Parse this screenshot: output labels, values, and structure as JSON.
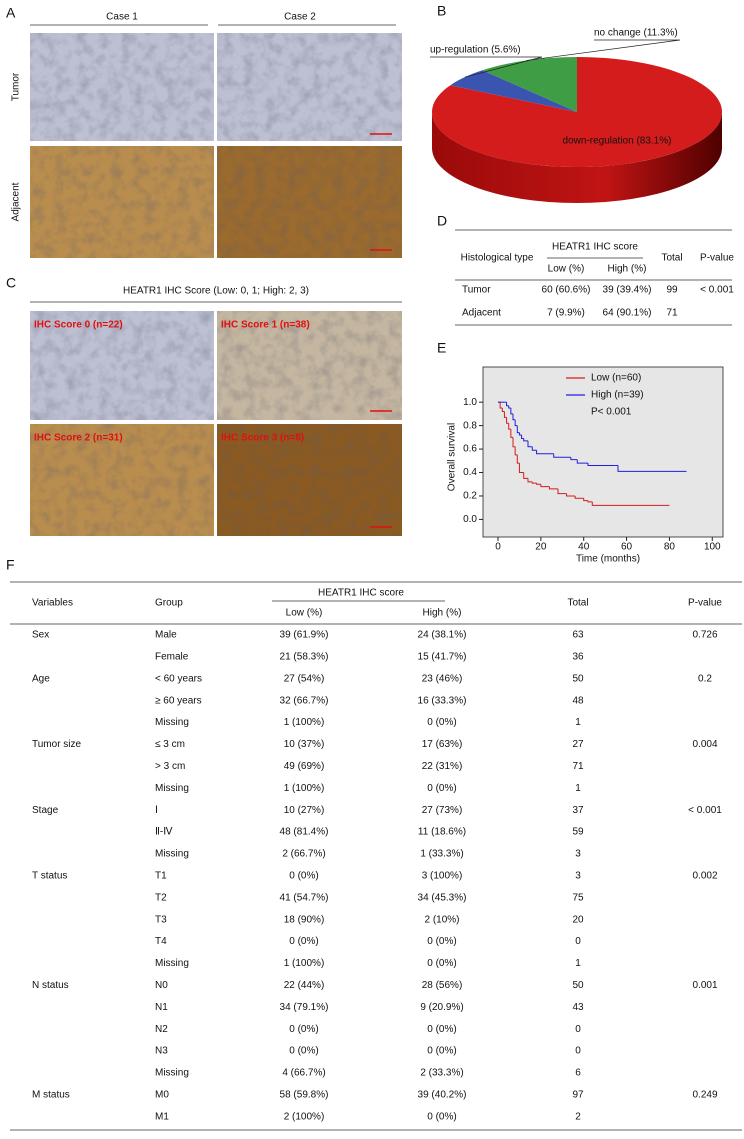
{
  "panel_labels": [
    "A",
    "B",
    "C",
    "D",
    "E",
    "F"
  ],
  "panel_a": {
    "columns": [
      "Case 1",
      "Case 2"
    ],
    "rows": [
      "Tumor",
      "Adjacent"
    ]
  },
  "panel_c": {
    "title": "HEATR1 IHC Score (Low: 0, 1; High: 2, 3)",
    "images": [
      "IHC Score 0 (n=22)",
      "IHC Score 1 (n=38)",
      "IHC Score 2 (n=31)",
      "IHC Score 3 (n=8)"
    ]
  },
  "chart_data": [
    {
      "type": "pie",
      "labels": [
        "down-regulation (83.1%)",
        "up-regulation (5.6%)",
        "no change (11.3%)"
      ],
      "values": [
        83.1,
        5.6,
        11.3
      ],
      "colors": [
        "#d41c1c",
        "#3a55b0",
        "#3f9d45"
      ]
    },
    {
      "type": "step",
      "xlabel": "Time (months)",
      "ylabel": "Overall survival",
      "xlim": [
        -7,
        105
      ],
      "ylim": [
        -0.15,
        1.3
      ],
      "xticks": [
        0,
        20,
        40,
        60,
        80,
        100
      ],
      "yticks": [
        {
          "value": 0,
          "label": "0.0"
        },
        {
          "value": 0.2,
          "label": "0.2"
        },
        {
          "value": 0.4,
          "label": "0.4"
        },
        {
          "value": 0.6,
          "label": "0.6"
        },
        {
          "value": 0.8,
          "label": "0.8"
        },
        {
          "value": 1,
          "label": "1.0"
        }
      ],
      "series": [
        {
          "name": "Low (n=60)",
          "color": "#d41c1c",
          "x": [
            0,
            1,
            2,
            3,
            4,
            5,
            6,
            7,
            8,
            9,
            10,
            12,
            14,
            16,
            18,
            20,
            24,
            28,
            32,
            36,
            40,
            42,
            44,
            80
          ],
          "values": [
            1.0,
            0.95,
            0.92,
            0.87,
            0.82,
            0.77,
            0.7,
            0.62,
            0.55,
            0.48,
            0.4,
            0.35,
            0.32,
            0.31,
            0.3,
            0.28,
            0.26,
            0.22,
            0.2,
            0.18,
            0.16,
            0.15,
            0.12,
            0.12
          ]
        },
        {
          "name": "High (n=39)",
          "color": "#1f1fe0",
          "x": [
            0,
            3,
            4,
            5,
            6,
            7,
            8,
            9,
            10,
            11,
            12,
            14,
            16,
            18,
            22,
            26,
            30,
            34,
            37,
            42,
            55,
            56,
            88
          ],
          "values": [
            1.0,
            1.0,
            0.97,
            0.95,
            0.9,
            0.85,
            0.8,
            0.74,
            0.72,
            0.69,
            0.67,
            0.62,
            0.59,
            0.56,
            0.56,
            0.53,
            0.53,
            0.51,
            0.48,
            0.46,
            0.46,
            0.41,
            0.41
          ]
        }
      ],
      "annotation": "P< 0.001"
    }
  ],
  "table_d": {
    "header": {
      "first": "Histological type",
      "group": "HEATR1 IHC score",
      "sub": [
        "Low (%)",
        "High (%)"
      ],
      "total": "Total",
      "p": "P-value"
    },
    "rows": [
      [
        "Tumor",
        "60 (60.6%)",
        "39 (39.4%)",
        99,
        "< 0.001"
      ],
      [
        "Adjacent",
        "7 (9.9%)",
        "64 (90.1%)",
        71,
        null
      ]
    ]
  },
  "table_f": {
    "header": {
      "first": "Variables",
      "second": "Group",
      "group": "HEATR1 IHC score",
      "sub": [
        "Low (%)",
        "High (%)"
      ],
      "total": "Total",
      "p": "P-value"
    },
    "groups": [
      {
        "variable": "Sex",
        "p_value": 0.726,
        "rows": [
          [
            "Male",
            "39 (61.9%)",
            "24 (38.1%)",
            63
          ],
          [
            "Female",
            "21 (58.3%)",
            "15 (41.7%)",
            36
          ]
        ]
      },
      {
        "variable": "Age",
        "p_value": 0.2,
        "rows": [
          [
            "< 60 years",
            "27 (54%)",
            "23 (46%)",
            50
          ],
          [
            "≥ 60 years",
            "32 (66.7%)",
            "16 (33.3%)",
            48
          ],
          [
            "Missing",
            "1 (100%)",
            "0 (0%)",
            1
          ]
        ]
      },
      {
        "variable": "Tumor size",
        "p_value": 0.004,
        "rows": [
          [
            "≤ 3 cm",
            "10 (37%)",
            "17 (63%)",
            27
          ],
          [
            "> 3 cm",
            "49 (69%)",
            "22 (31%)",
            71
          ],
          [
            "Missing",
            "1 (100%)",
            "0 (0%)",
            1
          ]
        ]
      },
      {
        "variable": "Stage",
        "p_value": "< 0.001",
        "rows": [
          [
            "Ⅰ",
            "10 (27%)",
            "27 (73%)",
            37
          ],
          [
            "Ⅱ-Ⅳ",
            "48 (81.4%)",
            "11 (18.6%)",
            59
          ],
          [
            "Missing",
            "2 (66.7%)",
            "1 (33.3%)",
            3
          ]
        ]
      },
      {
        "variable": "T status",
        "p_value": 0.002,
        "rows": [
          [
            "T1",
            "0 (0%)",
            "3 (100%)",
            3
          ],
          [
            "T2",
            "41 (54.7%)",
            "34 (45.3%)",
            75
          ],
          [
            "T3",
            "18 (90%)",
            "2 (10%)",
            20
          ],
          [
            "T4",
            "0 (0%)",
            "0 (0%)",
            0
          ],
          [
            "Missing",
            "1 (100%)",
            "0 (0%)",
            1
          ]
        ]
      },
      {
        "variable": "N status",
        "p_value": 0.001,
        "rows": [
          [
            "N0",
            "22 (44%)",
            "28 (56%)",
            50
          ],
          [
            "N1",
            "34 (79.1%)",
            "9 (20.9%)",
            43
          ],
          [
            "N2",
            "0 (0%)",
            "0 (0%)",
            0
          ],
          [
            "N3",
            "0 (0%)",
            "0 (0%)",
            0
          ],
          [
            "Missing",
            "4 (66.7%)",
            "2 (33.3%)",
            6
          ]
        ]
      },
      {
        "variable": "M status",
        "p_value": 0.249,
        "rows": [
          [
            "M0",
            "58 (59.8%)",
            "39 (40.2%)",
            97
          ],
          [
            "M1",
            "2 (100%)",
            "0 (0%)",
            2
          ]
        ]
      }
    ]
  }
}
